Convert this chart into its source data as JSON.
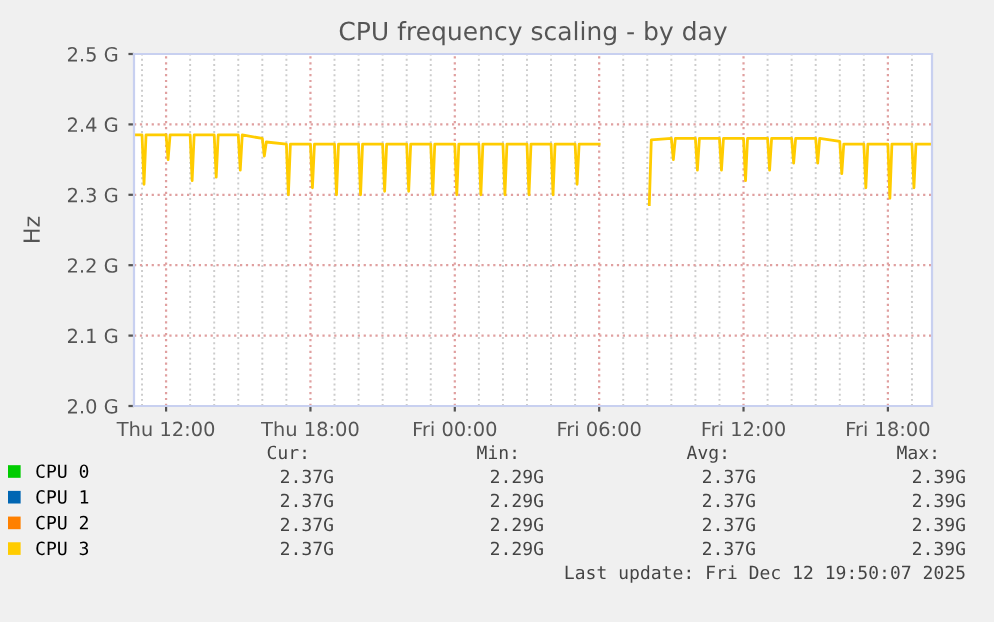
{
  "chart_data": {
    "type": "line",
    "title": "CPU frequency scaling - by day",
    "ylabel": "Hz",
    "x": [
      "2025-12-11T10:40",
      "2025-12-11T11:00",
      "2025-12-11T11:05",
      "2025-12-11T11:10",
      "2025-12-11T12:00",
      "2025-12-11T12:05",
      "2025-12-11T12:10",
      "2025-12-11T13:00",
      "2025-12-11T13:05",
      "2025-12-11T13:10",
      "2025-12-11T14:00",
      "2025-12-11T14:05",
      "2025-12-11T14:10",
      "2025-12-11T15:00",
      "2025-12-11T15:05",
      "2025-12-11T15:10",
      "2025-12-11T16:00",
      "2025-12-11T16:05",
      "2025-12-11T16:10",
      "2025-12-11T17:00",
      "2025-12-11T17:05",
      "2025-12-11T17:10",
      "2025-12-11T18:00",
      "2025-12-11T18:05",
      "2025-12-11T18:10",
      "2025-12-11T19:00",
      "2025-12-11T19:05",
      "2025-12-11T19:10",
      "2025-12-11T20:00",
      "2025-12-11T20:05",
      "2025-12-11T20:10",
      "2025-12-11T21:00",
      "2025-12-11T21:05",
      "2025-12-11T21:10",
      "2025-12-11T22:00",
      "2025-12-11T22:05",
      "2025-12-11T22:10",
      "2025-12-11T23:00",
      "2025-12-11T23:05",
      "2025-12-11T23:10",
      "2025-12-12T00:00",
      "2025-12-12T00:05",
      "2025-12-12T00:10",
      "2025-12-12T01:00",
      "2025-12-12T01:05",
      "2025-12-12T01:10",
      "2025-12-12T02:00",
      "2025-12-12T02:05",
      "2025-12-12T02:10",
      "2025-12-12T03:00",
      "2025-12-12T03:05",
      "2025-12-12T03:10",
      "2025-12-12T04:00",
      "2025-12-12T04:05",
      "2025-12-12T04:10",
      "2025-12-12T05:00",
      "2025-12-12T05:05",
      "2025-12-12T05:10",
      "2025-12-12T06:00",
      "2025-12-12T07:00",
      "2025-12-12T08:05",
      "2025-12-12T08:10",
      "2025-12-12T09:00",
      "2025-12-12T09:05",
      "2025-12-12T09:10",
      "2025-12-12T10:00",
      "2025-12-12T10:05",
      "2025-12-12T10:10",
      "2025-12-12T11:00",
      "2025-12-12T11:05",
      "2025-12-12T11:10",
      "2025-12-12T12:00",
      "2025-12-12T12:05",
      "2025-12-12T12:10",
      "2025-12-12T13:00",
      "2025-12-12T13:05",
      "2025-12-12T13:10",
      "2025-12-12T14:00",
      "2025-12-12T14:05",
      "2025-12-12T14:10",
      "2025-12-12T15:00",
      "2025-12-12T15:05",
      "2025-12-12T15:10",
      "2025-12-12T16:00",
      "2025-12-12T16:05",
      "2025-12-12T16:10",
      "2025-12-12T17:00",
      "2025-12-12T17:05",
      "2025-12-12T17:10",
      "2025-12-12T18:00",
      "2025-12-12T18:05",
      "2025-12-12T18:10",
      "2025-12-12T19:00",
      "2025-12-12T19:05",
      "2025-12-12T19:10",
      "2025-12-12T19:50"
    ],
    "series": [
      {
        "name": "CPU 0",
        "color": "#00cc00",
        "values": [
          null,
          null,
          null,
          null,
          null,
          null,
          null,
          null,
          null,
          null,
          null,
          null,
          null,
          null,
          null,
          null,
          null,
          null,
          null,
          null,
          null,
          null,
          null,
          null,
          null,
          null,
          null,
          null,
          null,
          null,
          null,
          null,
          null,
          null,
          null,
          null,
          null,
          null,
          null,
          null,
          null,
          null,
          null,
          null,
          null,
          null,
          null,
          null,
          null,
          null,
          null,
          null,
          null,
          null,
          null,
          null,
          null,
          null,
          null,
          null,
          null,
          null,
          null,
          null,
          null,
          null,
          null,
          null,
          null,
          null,
          null,
          null,
          null,
          null,
          null,
          null,
          null,
          null,
          null,
          null,
          null,
          null,
          null,
          null,
          null,
          null,
          null,
          null,
          null,
          null,
          null,
          null,
          null,
          null,
          null,
          null
        ]
      },
      {
        "name": "CPU 1",
        "color": "#0066b3",
        "values": [
          null,
          null,
          null,
          null,
          null,
          null,
          null,
          null,
          null,
          null,
          null,
          null,
          null,
          null,
          null,
          null,
          null,
          null,
          null,
          null,
          null,
          null,
          null,
          null,
          null,
          null,
          null,
          null,
          null,
          null,
          null,
          null,
          null,
          null,
          null,
          null,
          null,
          null,
          null,
          null,
          null,
          null,
          null,
          null,
          null,
          null,
          null,
          null,
          null,
          null,
          null,
          null,
          null,
          null,
          null,
          null,
          null,
          null,
          null,
          null,
          null,
          null,
          null,
          null,
          null,
          null,
          null,
          null,
          null,
          null,
          null,
          null,
          null,
          null,
          null,
          null,
          null,
          null,
          null,
          null,
          null,
          null,
          null,
          null,
          null,
          null,
          null,
          null,
          null,
          null,
          null,
          null,
          null,
          null,
          null,
          null
        ]
      },
      {
        "name": "CPU 2",
        "color": "#ff8000",
        "values": [
          null,
          null,
          null,
          null,
          null,
          null,
          null,
          null,
          null,
          null,
          null,
          null,
          null,
          null,
          null,
          null,
          null,
          null,
          null,
          null,
          null,
          null,
          null,
          null,
          null,
          null,
          null,
          null,
          null,
          null,
          null,
          null,
          null,
          null,
          null,
          null,
          null,
          null,
          null,
          null,
          null,
          null,
          null,
          null,
          null,
          null,
          null,
          null,
          null,
          null,
          null,
          null,
          null,
          null,
          null,
          null,
          null,
          null,
          null,
          null,
          null,
          null,
          null,
          null,
          null,
          null,
          null,
          null,
          null,
          null,
          null,
          null,
          null,
          null,
          null,
          null,
          null,
          null,
          null,
          null,
          null,
          null,
          null,
          null,
          null,
          null,
          null,
          null,
          null,
          null,
          null,
          null,
          null,
          null,
          null,
          null
        ]
      },
      {
        "name": "CPU 3",
        "color": "#ffcc00",
        "values": [
          2.385,
          2.385,
          2.315,
          2.385,
          2.385,
          2.35,
          2.385,
          2.385,
          2.32,
          2.385,
          2.385,
          2.325,
          2.385,
          2.385,
          2.335,
          2.385,
          2.38,
          2.355,
          2.375,
          2.372,
          2.3,
          2.372,
          2.372,
          2.31,
          2.372,
          2.372,
          2.3,
          2.372,
          2.372,
          2.3,
          2.372,
          2.372,
          2.305,
          2.372,
          2.372,
          2.305,
          2.372,
          2.372,
          2.3,
          2.372,
          2.372,
          2.3,
          2.372,
          2.372,
          2.3,
          2.372,
          2.372,
          2.3,
          2.372,
          2.372,
          2.3,
          2.372,
          2.372,
          2.3,
          2.372,
          2.372,
          2.315,
          2.372,
          2.372,
          null,
          2.286,
          2.378,
          2.38,
          2.35,
          2.38,
          2.38,
          2.335,
          2.38,
          2.38,
          2.335,
          2.38,
          2.38,
          2.32,
          2.38,
          2.38,
          2.335,
          2.38,
          2.38,
          2.345,
          2.38,
          2.38,
          2.345,
          2.38,
          2.376,
          2.33,
          2.372,
          2.372,
          2.31,
          2.372,
          2.372,
          2.295,
          2.372,
          2.372,
          2.31,
          2.372,
          2.372
        ]
      }
    ],
    "xlim": [
      "2025-12-11T10:40",
      "2025-12-12T19:50"
    ],
    "xticks": [
      {
        "value": "2025-12-11T12:00",
        "label": "Thu 12:00"
      },
      {
        "value": "2025-12-11T18:00",
        "label": "Thu 18:00"
      },
      {
        "value": "2025-12-12T00:00",
        "label": "Fri 00:00"
      },
      {
        "value": "2025-12-12T06:00",
        "label": "Fri 06:00"
      },
      {
        "value": "2025-12-12T12:00",
        "label": "Fri 12:00"
      },
      {
        "value": "2025-12-12T18:00",
        "label": "Fri 18:00"
      }
    ],
    "ylim": [
      2.0,
      2.5
    ],
    "yticks": [
      {
        "value": 2.0,
        "label": "2.0 G"
      },
      {
        "value": 2.1,
        "label": "2.1 G"
      },
      {
        "value": 2.2,
        "label": "2.2 G"
      },
      {
        "value": 2.3,
        "label": "2.3 G"
      },
      {
        "value": 2.4,
        "label": "2.4 G"
      },
      {
        "value": 2.5,
        "label": "2.5 G"
      }
    ],
    "grid": true,
    "legend": "bottom",
    "line_style": "solid",
    "marker": "none",
    "annotations": [
      "Cur:",
      "Min:",
      "Avg:",
      "Max:",
      "2.37G",
      "2.29G",
      "2.37G",
      "2.39G",
      "2.37G",
      "2.29G",
      "2.37G",
      "2.39G",
      "2.37G",
      "2.29G",
      "2.37G",
      "2.39G",
      "2.37G",
      "2.29G",
      "2.37G",
      "2.39G",
      "Last update: Fri Dec 12 19:50:07 2025"
    ]
  }
}
